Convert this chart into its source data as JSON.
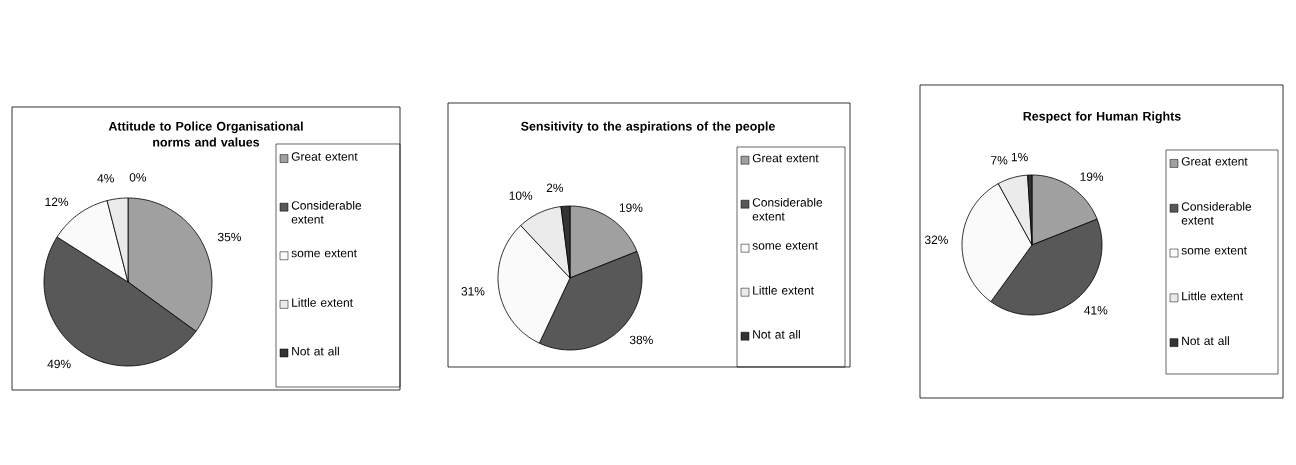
{
  "chart_data": [
    {
      "type": "pie",
      "title": "Attitude to Police Organisational norms and values",
      "categories": [
        "Great extent",
        "Considerable extent",
        "some extent",
        "Little extent",
        "Not at all"
      ],
      "values": [
        35,
        49,
        12,
        4,
        0
      ],
      "value_labels": [
        "35%",
        "49%",
        "12%",
        "4%",
        "0%"
      ],
      "colors": [
        "#a0a0a0",
        "#585858",
        "#fafafa",
        "#ebebeb",
        "#333333"
      ],
      "legend": "right"
    },
    {
      "type": "pie",
      "title": "Sensitivity to the aspirations of the people",
      "categories": [
        "Great extent",
        "Considerable extent",
        "some extent",
        "Little extent",
        "Not at all"
      ],
      "values": [
        19,
        38,
        31,
        10,
        2
      ],
      "value_labels": [
        "19%",
        "38%",
        "31%",
        "10%",
        "2%"
      ],
      "colors": [
        "#a0a0a0",
        "#585858",
        "#fafafa",
        "#ebebeb",
        "#333333"
      ],
      "legend": "right"
    },
    {
      "type": "pie",
      "title": "Respect for Human Rights",
      "categories": [
        "Great extent",
        "Considerable extent",
        "some extent",
        "Little extent",
        "Not at all"
      ],
      "values": [
        19,
        41,
        32,
        7,
        1
      ],
      "value_labels": [
        "19%",
        "41%",
        "32%",
        "7%",
        "1%"
      ],
      "colors": [
        "#a0a0a0",
        "#585858",
        "#fafafa",
        "#ebebeb",
        "#333333"
      ],
      "legend": "right"
    }
  ]
}
